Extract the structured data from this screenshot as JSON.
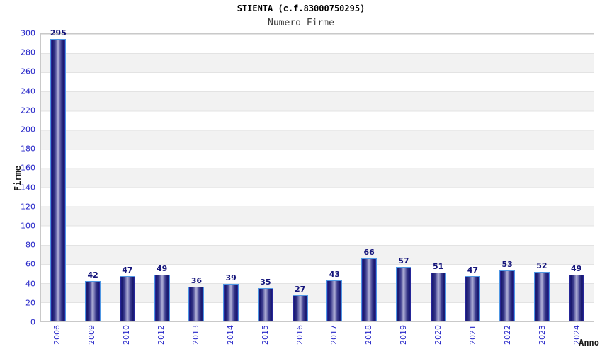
{
  "header": {
    "title": "STIENTA (c.f.83000750295)",
    "subtitle": "Numero Firme"
  },
  "chart_data": {
    "type": "bar",
    "title": "STIENTA (c.f.83000750295)",
    "subtitle": "Numero Firme",
    "xlabel": "Anno",
    "ylabel": "Firme",
    "categories": [
      "2006",
      "2009",
      "2010",
      "2012",
      "2013",
      "2014",
      "2015",
      "2016",
      "2017",
      "2018",
      "2019",
      "2020",
      "2021",
      "2022",
      "2023",
      "2024"
    ],
    "values": [
      295,
      42,
      47,
      49,
      36,
      39,
      35,
      27,
      43,
      66,
      57,
      51,
      47,
      53,
      52,
      49
    ],
    "ylim": [
      0,
      300
    ],
    "ytick_step": 20,
    "legend": "none",
    "grid": "horizontal-gridlines-with-alternating-bands",
    "bar_value_labels_shown": true
  },
  "colors": {
    "tick_label_blue": "#2525c8",
    "value_label_navy": "#15157b",
    "bar_edge_dark": "#16166a",
    "bar_center_light": "#b2b2d8",
    "bar_outline_light_blue": "#4f97e3",
    "band_gray": "#f2f2f2",
    "gridline": "#e3e3e3",
    "plot_border": "#c9c9c9",
    "background": "#ffffff",
    "axis_title_black": "#1a1a1a"
  }
}
